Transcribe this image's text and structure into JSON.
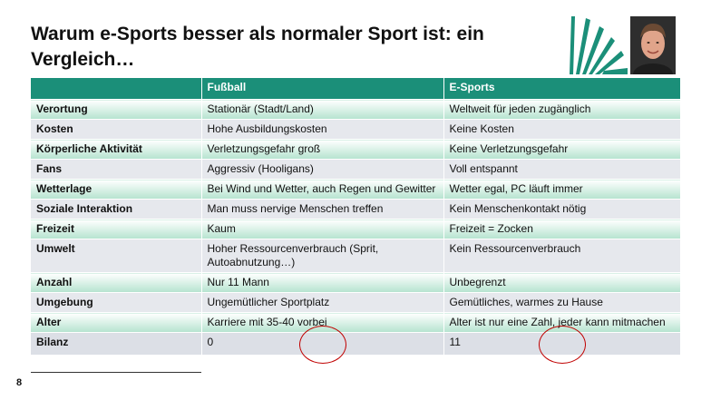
{
  "slide": {
    "title": "Warum e-Sports besser als normaler Sport ist: ein Vergleich…",
    "page_number": "8",
    "accent_color": "#1b8f79"
  },
  "table": {
    "headers": [
      "",
      "Fußball",
      "E-Sports"
    ],
    "rows": [
      {
        "label": "Verortung",
        "fussball": "Stationär (Stadt/Land)",
        "esports": "Weltweit für jeden zugänglich"
      },
      {
        "label": "Kosten",
        "fussball": "Hohe Ausbildungskosten",
        "esports": "Keine Kosten"
      },
      {
        "label": "Körperliche Aktivität",
        "fussball": "Verletzungsgefahr  groß",
        "esports": "Keine Verletzungsgefahr"
      },
      {
        "label": "Fans",
        "fussball": "Aggressiv (Hooligans)",
        "esports": "Voll entspannt"
      },
      {
        "label": "Wetterlage",
        "fussball": "Bei Wind und Wetter, auch Regen und Gewitter",
        "esports": "Wetter egal, PC läuft immer"
      },
      {
        "label": "Soziale Interaktion",
        "fussball": "Man muss nervige Menschen  treffen",
        "esports": "Kein Menschenkontakt  nötig"
      },
      {
        "label": "Freizeit",
        "fussball": "Kaum",
        "esports": "Freizeit = Zocken"
      },
      {
        "label": "Umwelt",
        "fussball": "Hoher Ressourcenverbrauch (Sprit, Autoabnutzung…)",
        "esports": "Kein Ressourcenverbrauch"
      },
      {
        "label": "Anzahl",
        "fussball": "Nur 11 Mann",
        "esports": "Unbegrenzt"
      },
      {
        "label": "Umgebung",
        "fussball": "Ungemütlicher  Sportplatz",
        "esports": "Gemütliches,  warmes zu Hause"
      },
      {
        "label": "Alter",
        "fussball": "Karriere mit 35-40 vorbei",
        "esports": "Alter ist nur eine Zahl, jeder kann mitmachen"
      }
    ],
    "bilanz": {
      "label": "Bilanz",
      "fussball": "0",
      "esports": "11"
    }
  }
}
